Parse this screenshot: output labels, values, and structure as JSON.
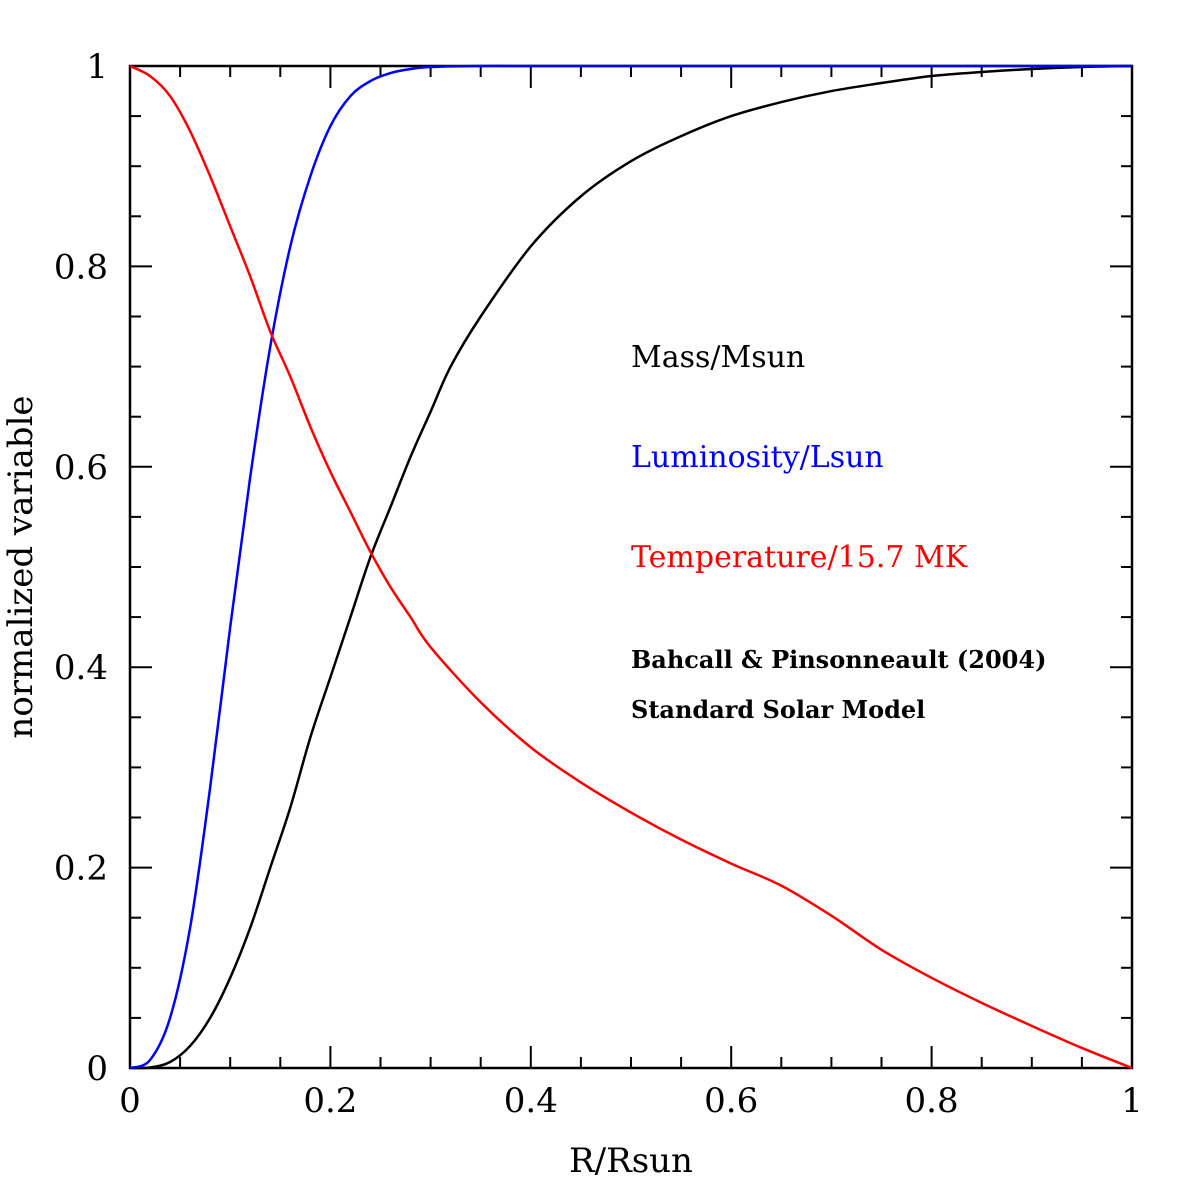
{
  "chart_data": {
    "type": "line",
    "xlabel": "R/Rsun",
    "ylabel": "normalized variable",
    "xlim": [
      0,
      1
    ],
    "ylim": [
      0,
      1
    ],
    "grid": false,
    "legend_placement": "right-middle",
    "x_ticks": [
      "0",
      "0.2",
      "0.4",
      "0.6",
      "0.8",
      "1"
    ],
    "y_ticks": [
      "0",
      "0.2",
      "0.4",
      "0.6",
      "0.8",
      "1"
    ],
    "series": [
      {
        "name": "Mass/Msun",
        "color": "#000000",
        "points": [
          [
            0,
            0
          ],
          [
            0.02,
            0.0005
          ],
          [
            0.04,
            0.006
          ],
          [
            0.06,
            0.022
          ],
          [
            0.08,
            0.05
          ],
          [
            0.1,
            0.09
          ],
          [
            0.12,
            0.14
          ],
          [
            0.14,
            0.2
          ],
          [
            0.16,
            0.26
          ],
          [
            0.18,
            0.33
          ],
          [
            0.2,
            0.39
          ],
          [
            0.22,
            0.45
          ],
          [
            0.24,
            0.51
          ],
          [
            0.26,
            0.56
          ],
          [
            0.28,
            0.61
          ],
          [
            0.3,
            0.655
          ],
          [
            0.32,
            0.7
          ],
          [
            0.35,
            0.75
          ],
          [
            0.4,
            0.82
          ],
          [
            0.45,
            0.87
          ],
          [
            0.5,
            0.905
          ],
          [
            0.55,
            0.93
          ],
          [
            0.6,
            0.95
          ],
          [
            0.65,
            0.964
          ],
          [
            0.7,
            0.975
          ],
          [
            0.75,
            0.983
          ],
          [
            0.8,
            0.99
          ],
          [
            0.85,
            0.994
          ],
          [
            0.9,
            0.997
          ],
          [
            0.95,
            0.999
          ],
          [
            1,
            1
          ]
        ]
      },
      {
        "name": "Luminosity/Lsun",
        "color": "#0000ff",
        "points": [
          [
            0,
            0
          ],
          [
            0.02,
            0.008
          ],
          [
            0.04,
            0.05
          ],
          [
            0.06,
            0.14
          ],
          [
            0.08,
            0.28
          ],
          [
            0.1,
            0.44
          ],
          [
            0.12,
            0.59
          ],
          [
            0.14,
            0.72
          ],
          [
            0.16,
            0.82
          ],
          [
            0.18,
            0.89
          ],
          [
            0.2,
            0.94
          ],
          [
            0.22,
            0.97
          ],
          [
            0.24,
            0.985
          ],
          [
            0.26,
            0.993
          ],
          [
            0.28,
            0.997
          ],
          [
            0.3,
            0.999
          ],
          [
            0.35,
            1
          ],
          [
            0.4,
            1
          ],
          [
            0.5,
            1
          ],
          [
            0.6,
            1
          ],
          [
            0.7,
            1
          ],
          [
            0.8,
            1
          ],
          [
            0.9,
            1
          ],
          [
            1,
            1
          ]
        ]
      },
      {
        "name": "Temperature/15.7 MK",
        "color": "#ff0000",
        "points": [
          [
            0,
            1
          ],
          [
            0.02,
            0.99
          ],
          [
            0.04,
            0.97
          ],
          [
            0.06,
            0.935
          ],
          [
            0.08,
            0.89
          ],
          [
            0.1,
            0.84
          ],
          [
            0.12,
            0.79
          ],
          [
            0.14,
            0.735
          ],
          [
            0.16,
            0.69
          ],
          [
            0.18,
            0.64
          ],
          [
            0.2,
            0.595
          ],
          [
            0.22,
            0.555
          ],
          [
            0.24,
            0.515
          ],
          [
            0.26,
            0.48
          ],
          [
            0.28,
            0.45
          ],
          [
            0.3,
            0.42
          ],
          [
            0.35,
            0.365
          ],
          [
            0.4,
            0.32
          ],
          [
            0.45,
            0.285
          ],
          [
            0.5,
            0.255
          ],
          [
            0.55,
            0.228
          ],
          [
            0.6,
            0.204
          ],
          [
            0.65,
            0.182
          ],
          [
            0.7,
            0.152
          ],
          [
            0.75,
            0.118
          ],
          [
            0.8,
            0.09
          ],
          [
            0.85,
            0.065
          ],
          [
            0.9,
            0.042
          ],
          [
            0.95,
            0.02
          ],
          [
            1,
            0
          ]
        ]
      }
    ],
    "annotations": [
      "Bahcall & Pinsonneault (2004)",
      "Standard Solar Model"
    ]
  }
}
